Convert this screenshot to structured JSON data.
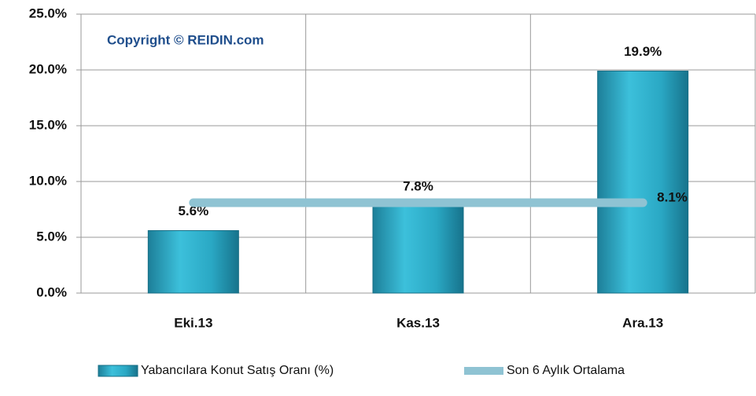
{
  "chart_data": {
    "type": "bar",
    "annotation": "Copyright © REIDIN.com",
    "categories": [
      "Eki.13",
      "Kas.13",
      "Ara.13"
    ],
    "series": [
      {
        "name": "Yabancılara Konut Satış Oranı (%)",
        "type": "bar",
        "color": "#2aa8c4",
        "values": [
          5.6,
          7.8,
          19.9
        ],
        "value_labels": [
          "5.6%",
          "7.8%",
          "19.9%"
        ]
      },
      {
        "name": "Son 6 Aylık Ortalama",
        "type": "line",
        "color": "#8fc3d3",
        "values": [
          8.1,
          8.1,
          8.1
        ],
        "value_labels": [
          null,
          null,
          "8.1%"
        ]
      }
    ],
    "ylim": [
      0,
      25
    ],
    "yticks": [
      {
        "value": 0,
        "label": "0.0%"
      },
      {
        "value": 5,
        "label": "5.0%"
      },
      {
        "value": 10,
        "label": "10.0%"
      },
      {
        "value": 15,
        "label": "15.0%"
      },
      {
        "value": 20,
        "label": "20.0%"
      },
      {
        "value": 25,
        "label": "25.0%"
      }
    ],
    "grid": true,
    "legend": "bottom"
  }
}
